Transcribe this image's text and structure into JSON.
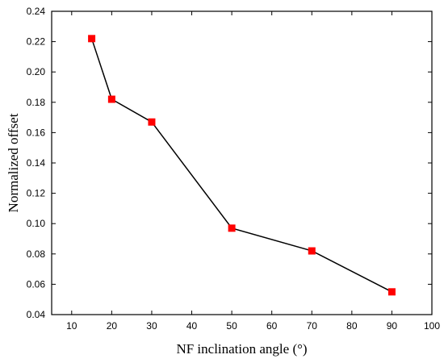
{
  "chart_data": {
    "type": "line",
    "xlabel": "NF inclination angle (°)",
    "ylabel": "Normalized offset",
    "xlim": [
      5,
      100
    ],
    "ylim": [
      0.04,
      0.24
    ],
    "x_ticks": [
      10,
      20,
      30,
      40,
      50,
      60,
      70,
      80,
      90,
      100
    ],
    "y_ticks": [
      0.04,
      0.06,
      0.08,
      0.1,
      0.12,
      0.14,
      0.16,
      0.18,
      0.2,
      0.22,
      0.24
    ],
    "x_tick_labels": [
      "10",
      "20",
      "30",
      "40",
      "50",
      "60",
      "70",
      "80",
      "90",
      "100"
    ],
    "y_tick_labels": [
      "0.04",
      "0.06",
      "0.08",
      "0.10",
      "0.12",
      "0.14",
      "0.16",
      "0.18",
      "0.20",
      "0.22",
      "0.24"
    ],
    "series": [
      {
        "x": [
          15,
          20,
          30,
          50,
          70,
          90
        ],
        "y": [
          0.222,
          0.182,
          0.167,
          0.097,
          0.082,
          0.055
        ],
        "line_color": "#000000",
        "marker": "square",
        "marker_color": "#ff0000"
      }
    ],
    "grid": false,
    "legend": "none"
  }
}
